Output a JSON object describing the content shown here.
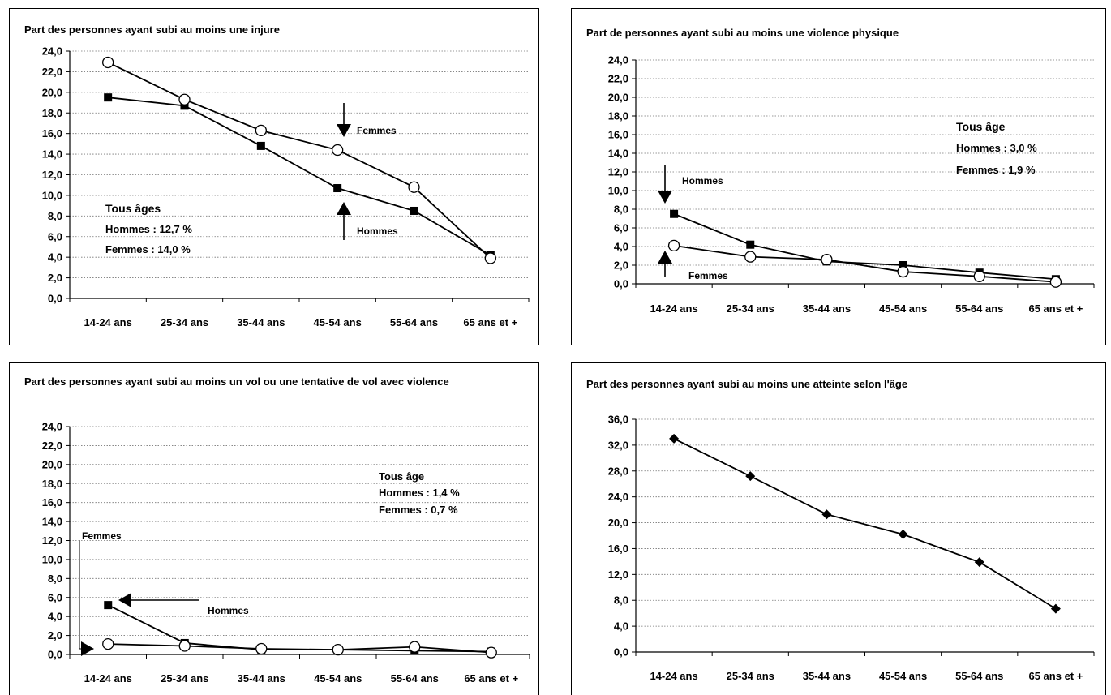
{
  "chart_data": [
    {
      "type": "line",
      "title": "Part des personnes ayant subi au moins une injure",
      "categories": [
        "14-24 ans",
        "25-34 ans",
        "35-44 ans",
        "45-54 ans",
        "55-64 ans",
        "65 ans et +"
      ],
      "ylim": [
        0,
        24
      ],
      "yticks": [
        "0,0",
        "2,0",
        "4,0",
        "6,0",
        "8,0",
        "10,0",
        "12,0",
        "14,0",
        "16,0",
        "18,0",
        "20,0",
        "22,0",
        "24,0"
      ],
      "grid": true,
      "series": [
        {
          "name": "Hommes",
          "marker": "square",
          "values": [
            19.5,
            18.7,
            14.8,
            10.7,
            8.5,
            4.2
          ]
        },
        {
          "name": "Femmes",
          "marker": "circle",
          "values": [
            22.9,
            19.3,
            16.3,
            14.4,
            10.8,
            3.9
          ]
        }
      ],
      "annotations": {
        "summary": [
          "Tous âges",
          "Hommes : 12,7 %",
          "Femmes : 14,0 %"
        ],
        "arrow_labels": [
          "Femmes",
          "Hommes"
        ]
      }
    },
    {
      "type": "line",
      "title": "Part de personnes ayant subi au moins une violence physique",
      "categories": [
        "14-24 ans",
        "25-34 ans",
        "35-44 ans",
        "45-54 ans",
        "55-64 ans",
        "65 ans et +"
      ],
      "ylim": [
        0,
        24
      ],
      "yticks": [
        "0,0",
        "2,0",
        "4,0",
        "6,0",
        "8,0",
        "10,0",
        "12,0",
        "14,0",
        "16,0",
        "18,0",
        "20,0",
        "22,0",
        "24,0"
      ],
      "grid": true,
      "series": [
        {
          "name": "Hommes",
          "marker": "square",
          "values": [
            7.5,
            4.2,
            2.4,
            2.0,
            1.2,
            0.5
          ]
        },
        {
          "name": "Femmes",
          "marker": "circle",
          "values": [
            4.1,
            2.9,
            2.6,
            1.3,
            0.8,
            0.2
          ]
        }
      ],
      "annotations": {
        "summary": [
          "Tous âge",
          "Hommes : 3,0 %",
          "Femmes : 1,9 %"
        ],
        "arrow_labels": [
          "Hommes",
          "Femmes"
        ]
      }
    },
    {
      "type": "line",
      "title": "Part des personnes ayant subi au moins un vol ou une tentative de vol avec violence",
      "categories": [
        "14-24 ans",
        "25-34 ans",
        "35-44 ans",
        "45-54 ans",
        "55-64 ans",
        "65 ans et +"
      ],
      "ylim": [
        0,
        24
      ],
      "yticks": [
        "0,0",
        "2,0",
        "4,0",
        "6,0",
        "8,0",
        "10,0",
        "12,0",
        "14,0",
        "16,0",
        "18,0",
        "20,0",
        "22,0",
        "24,0"
      ],
      "grid": true,
      "series": [
        {
          "name": "Hommes",
          "marker": "square",
          "values": [
            5.2,
            1.2,
            0.5,
            0.5,
            0.4,
            0.3
          ]
        },
        {
          "name": "Femmes",
          "marker": "circle",
          "values": [
            1.1,
            0.9,
            0.6,
            0.5,
            0.8,
            0.2
          ]
        }
      ],
      "annotations": {
        "summary": [
          "Tous âge",
          "Hommes : 1,4 %",
          "Femmes : 0,7 %"
        ],
        "arrow_labels": [
          "Femmes",
          "Hommes"
        ]
      }
    },
    {
      "type": "line",
      "title": "Part des personnes ayant subi au moins une atteinte selon l'âge",
      "categories": [
        "14-24 ans",
        "25-34 ans",
        "35-44 ans",
        "45-54 ans",
        "55-64 ans",
        "65 ans et +"
      ],
      "ylim": [
        0,
        36
      ],
      "yticks": [
        "0,0",
        "4,0",
        "8,0",
        "12,0",
        "16,0",
        "20,0",
        "24,0",
        "28,0",
        "32,0",
        "36,0"
      ],
      "grid": true,
      "series": [
        {
          "marker": "diamond",
          "values": [
            33.0,
            27.2,
            21.3,
            18.2,
            13.9,
            6.7
          ]
        }
      ]
    }
  ]
}
